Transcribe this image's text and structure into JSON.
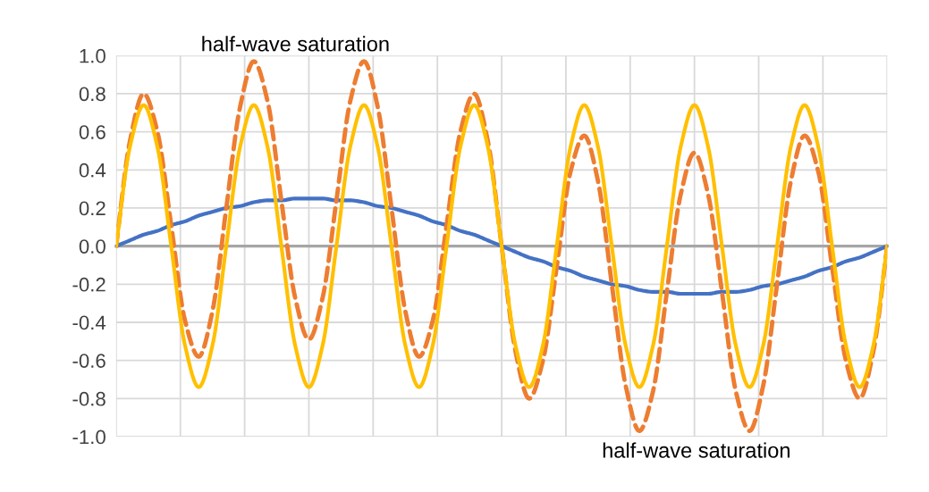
{
  "chart_data": {
    "type": "line",
    "categories": [
      null,
      null,
      null,
      null,
      null,
      null,
      null,
      null,
      null,
      null,
      null,
      null,
      null,
      null,
      null,
      null,
      null,
      null,
      null,
      null,
      null,
      null,
      null,
      null,
      null,
      null,
      null,
      null,
      null,
      null,
      null,
      null,
      null,
      null,
      null,
      null,
      null,
      null,
      null,
      null,
      null,
      null,
      null,
      null,
      null,
      null,
      null,
      null,
      null,
      null,
      null,
      null,
      null,
      null,
      null,
      null,
      null
    ],
    "series": [
      {
        "color": "#4472c4",
        "line_style": "solid",
        "values": [
          0,
          0.03,
          0.06,
          0.08,
          0.11,
          0.13,
          0.16,
          0.18,
          0.2,
          0.21,
          0.23,
          0.24,
          0.24,
          0.25,
          0.25,
          0.25,
          0.24,
          0.24,
          0.23,
          0.21,
          0.2,
          0.18,
          0.16,
          0.13,
          0.11,
          0.08,
          0.06,
          0.03,
          0,
          -0.03,
          -0.06,
          -0.08,
          -0.11,
          -0.13,
          -0.16,
          -0.18,
          -0.2,
          -0.21,
          -0.23,
          -0.24,
          -0.24,
          -0.25,
          -0.25,
          -0.25,
          -0.24,
          -0.24,
          -0.23,
          -0.21,
          -0.2,
          -0.18,
          -0.16,
          -0.13,
          -0.11,
          -0.08,
          -0.06,
          -0.03,
          0
        ]
      },
      {
        "color": "#ed7d31",
        "line_style": "dashed",
        "values": [
          0,
          0.55,
          0.8,
          0.6,
          0.11,
          -0.39,
          -0.58,
          -0.34,
          0.2,
          0.73,
          0.97,
          0.76,
          0.24,
          -0.27,
          -0.49,
          -0.27,
          0.24,
          0.76,
          0.97,
          0.73,
          0.2,
          -0.34,
          -0.58,
          -0.39,
          0.11,
          0.6,
          0.8,
          0.55,
          0,
          -0.55,
          -0.8,
          -0.6,
          -0.11,
          0.39,
          0.58,
          0.34,
          -0.2,
          -0.73,
          -0.97,
          -0.76,
          -0.24,
          0.27,
          0.49,
          0.27,
          -0.24,
          -0.76,
          -0.97,
          -0.73,
          -0.2,
          0.34,
          0.58,
          0.39,
          -0.11,
          -0.6,
          -0.8,
          -0.55,
          0
        ]
      },
      {
        "color": "#ffc000",
        "line_style": "solid",
        "values": [
          0,
          0.52,
          0.74,
          0.52,
          0,
          -0.52,
          -0.74,
          -0.52,
          0,
          0.52,
          0.74,
          0.52,
          0,
          -0.52,
          -0.74,
          -0.52,
          0,
          0.52,
          0.74,
          0.52,
          0,
          -0.52,
          -0.74,
          -0.52,
          0,
          0.52,
          0.74,
          0.52,
          0,
          -0.52,
          -0.74,
          -0.52,
          0,
          0.52,
          0.74,
          0.52,
          0,
          -0.52,
          -0.74,
          -0.52,
          0,
          0.52,
          0.74,
          0.52,
          0,
          -0.52,
          -0.74,
          -0.52,
          0,
          0.52,
          0.74,
          0.52,
          0,
          -0.52,
          -0.74,
          -0.52,
          0
        ]
      }
    ],
    "ylim": [
      -1.0,
      1.0
    ],
    "yticks": [
      {
        "value": -1,
        "label": "-1.0"
      },
      -0.8,
      -0.6,
      -0.4,
      -0.2,
      {
        "value": 0,
        "label": "0.0"
      },
      0.2,
      0.4,
      0.6,
      0.8,
      {
        "value": 1,
        "label": "1.0"
      }
    ],
    "grid": true,
    "legend": false,
    "marker": "none",
    "annotations": [
      "half-wave saturation",
      "half-wave saturation"
    ]
  }
}
